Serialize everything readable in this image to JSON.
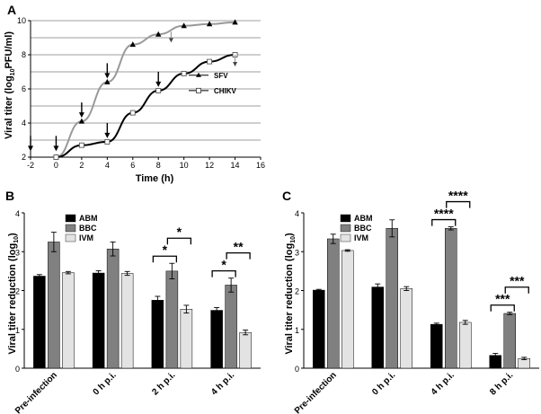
{
  "chart_data": [
    {
      "type": "line",
      "panel": "A",
      "xlabel": "Time (h)",
      "ylabel": "Viral titer (log10PFU/ml)",
      "xlim": [
        -2,
        16
      ],
      "ylim": [
        2,
        10
      ],
      "xticks": [
        "-2",
        "0",
        "2",
        "4",
        "6",
        "8",
        "10",
        "12",
        "14",
        "16"
      ],
      "yticks": [
        "2",
        "4",
        "6",
        "8",
        "10"
      ],
      "series": [
        {
          "name": "SFV",
          "color": "#999999",
          "marker": "triangle",
          "x": [
            0,
            2,
            4,
            6,
            8,
            10,
            12,
            14
          ],
          "y": [
            2.0,
            4.1,
            6.4,
            8.6,
            9.2,
            9.7,
            9.8,
            9.9
          ]
        },
        {
          "name": "CHIKV",
          "color": "#000000",
          "marker": "square",
          "x": [
            0,
            2,
            4,
            6,
            8,
            10,
            12,
            14
          ],
          "y": [
            2.0,
            2.7,
            2.9,
            4.6,
            5.9,
            6.9,
            7.6,
            8.0
          ]
        }
      ],
      "arrows_at_x": [
        -2,
        0,
        2,
        4,
        4,
        8
      ]
    },
    {
      "type": "bar",
      "panel": "B",
      "ylabel": "Viral titer reduction (log10)",
      "ylim": [
        0,
        4
      ],
      "yticks": [
        "0",
        "1",
        "2",
        "3",
        "4"
      ],
      "categories": [
        "Pre-infection",
        "0 h p.i.",
        "2 h p.i.",
        "4 h p.i."
      ],
      "series": [
        {
          "name": "ABM",
          "color": "#000000",
          "values": [
            2.37,
            2.45,
            1.75,
            1.49
          ],
          "errors": [
            0.04,
            0.06,
            0.1,
            0.07
          ]
        },
        {
          "name": "BBC",
          "color": "#808080",
          "values": [
            3.25,
            3.07,
            2.5,
            2.14
          ],
          "errors": [
            0.25,
            0.18,
            0.2,
            0.18
          ]
        },
        {
          "name": "IVM",
          "color": "#e3e3e3",
          "values": [
            2.46,
            2.44,
            1.52,
            0.92
          ],
          "errors": [
            0.03,
            0.05,
            0.1,
            0.06
          ]
        }
      ],
      "significance": [
        {
          "category": "2 h p.i.",
          "from": "ABM",
          "to": "BBC",
          "label": "*"
        },
        {
          "category": "2 h p.i.",
          "from": "BBC",
          "to": "IVM",
          "label": "*"
        },
        {
          "category": "4 h p.i.",
          "from": "ABM",
          "to": "BBC",
          "label": "*"
        },
        {
          "category": "4 h p.i.",
          "from": "BBC",
          "to": "IVM",
          "label": "**"
        }
      ]
    },
    {
      "type": "bar",
      "panel": "C",
      "ylabel": "Viral titer reduction (log10)",
      "ylim": [
        0,
        4
      ],
      "yticks": [
        "0",
        "1",
        "2",
        "3",
        "4"
      ],
      "categories": [
        "Pre-infection",
        "0 h p.i.",
        "4 h p.i.",
        "8 h p.i."
      ],
      "series": [
        {
          "name": "ABM",
          "color": "#000000",
          "values": [
            2.01,
            2.09,
            1.13,
            0.33
          ],
          "errors": [
            0.02,
            0.08,
            0.03,
            0.05
          ]
        },
        {
          "name": "BBC",
          "color": "#808080",
          "values": [
            3.33,
            3.6,
            3.6,
            1.41
          ],
          "errors": [
            0.12,
            0.22,
            0.04,
            0.03
          ]
        },
        {
          "name": "IVM",
          "color": "#e3e3e3",
          "values": [
            3.03,
            2.05,
            1.18,
            0.25
          ],
          "errors": [
            0.02,
            0.05,
            0.05,
            0.03
          ]
        }
      ],
      "significance": [
        {
          "category": "4 h p.i.",
          "from": "ABM",
          "to": "BBC",
          "label": "****"
        },
        {
          "category": "4 h p.i.",
          "from": "BBC",
          "to": "IVM",
          "label": "****"
        },
        {
          "category": "8 h p.i.",
          "from": "ABM",
          "to": "BBC",
          "label": "***"
        },
        {
          "category": "8 h p.i.",
          "from": "BBC",
          "to": "IVM",
          "label": "***"
        }
      ]
    }
  ]
}
